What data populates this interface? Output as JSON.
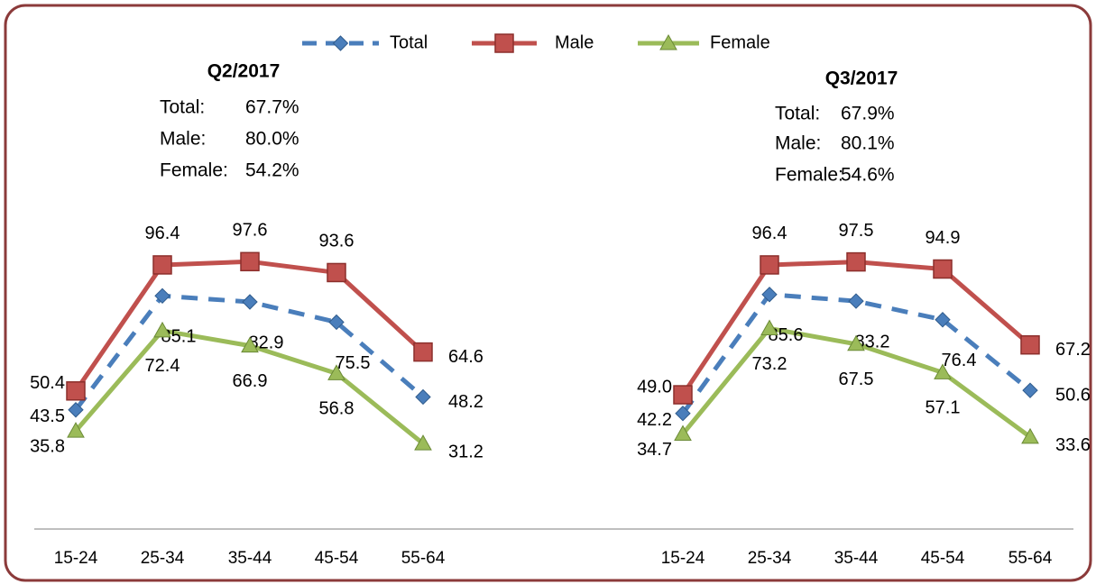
{
  "chart_data": [
    {
      "type": "line",
      "title": "Q2/2017",
      "stats": [
        {
          "label": "Total:",
          "value": "67.7%"
        },
        {
          "label": "Male:",
          "value": "80.0%"
        },
        {
          "label": "Female:",
          "value": "54.2%"
        }
      ],
      "categories": [
        "15-24",
        "25-34",
        "35-44",
        "45-54",
        "55-64"
      ],
      "ylim": [
        0,
        100
      ],
      "series": [
        {
          "name": "Total",
          "color": "#4a7ebb",
          "marker": "diamond",
          "dashed": true,
          "values": [
            43.5,
            85.1,
            82.9,
            75.5,
            48.2
          ]
        },
        {
          "name": "Male",
          "color": "#c0504d",
          "marker": "square",
          "values": [
            50.4,
            96.4,
            97.6,
            93.6,
            64.6
          ]
        },
        {
          "name": "Female",
          "color": "#9bbb59",
          "marker": "triangle",
          "values": [
            35.8,
            72.4,
            66.9,
            56.8,
            31.2
          ]
        }
      ]
    },
    {
      "type": "line",
      "title": "Q3/2017",
      "stats": [
        {
          "label": "Total:",
          "value": "67.9%"
        },
        {
          "label": "Male:",
          "value": "80.1%"
        },
        {
          "label": "Female:",
          "value": "54.6%"
        }
      ],
      "categories": [
        "15-24",
        "25-34",
        "35-44",
        "45-54",
        "55-64"
      ],
      "ylim": [
        0,
        100
      ],
      "series": [
        {
          "color": "#4a7ebb",
          "marker": "diamond",
          "dashed": true,
          "values": [
            42.2,
            85.6,
            83.2,
            76.4,
            50.6
          ]
        },
        {
          "color": "#c0504d",
          "marker": "square",
          "values": [
            49,
            96.4,
            97.5,
            94.9,
            67.2
          ],
          "value_labels": [
            "49.0",
            "96.4",
            "97.5",
            "94.9",
            "67.2"
          ]
        },
        {
          "color": "#9bbb59",
          "marker": "triangle",
          "values": [
            34.7,
            73.2,
            67.5,
            57.1,
            33.6
          ]
        }
      ]
    }
  ]
}
